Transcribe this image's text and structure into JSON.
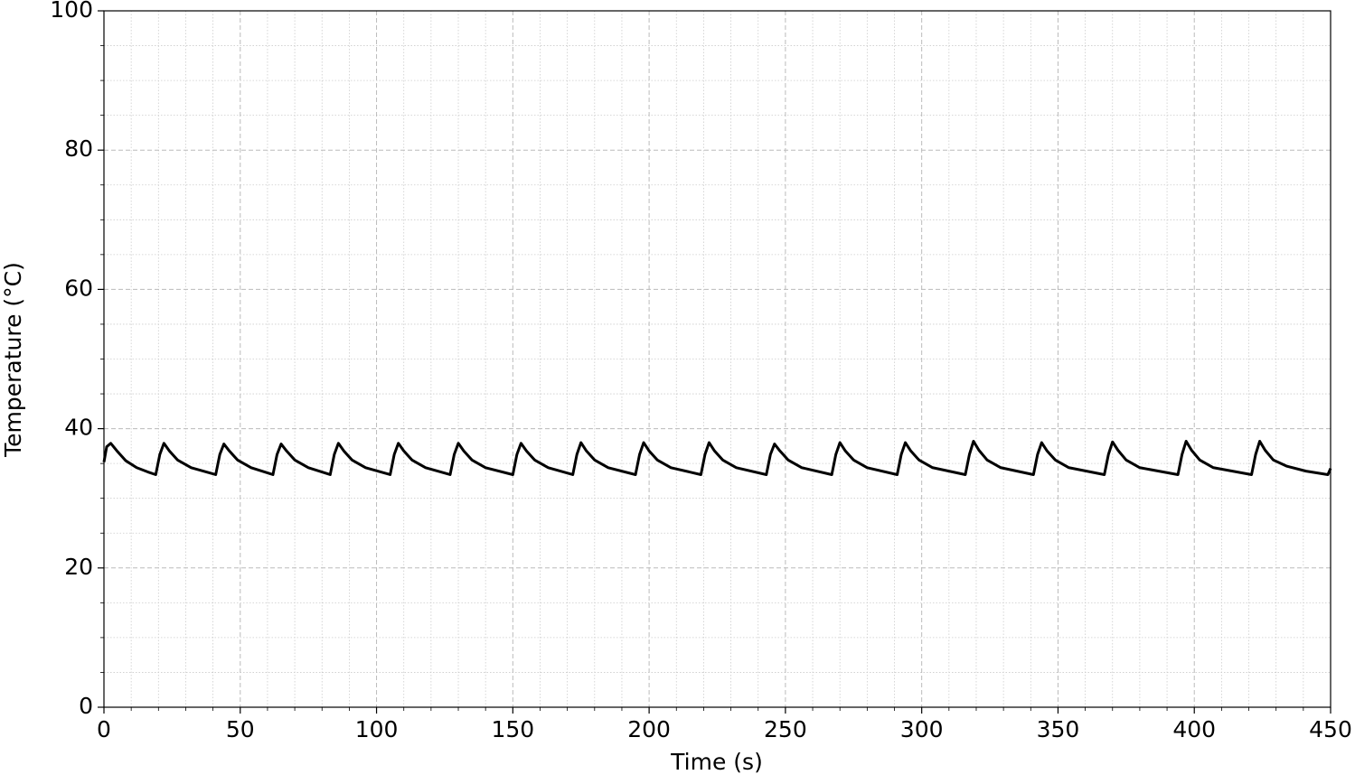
{
  "chart_data": {
    "type": "line",
    "xlabel": "Time (s)",
    "ylabel": "Temperature (°C)",
    "x": [
      0,
      1,
      2.5,
      5,
      8,
      12,
      16,
      19,
      20.5,
      22,
      24,
      27,
      32,
      41,
      42.5,
      44,
      46,
      49,
      54,
      62,
      63.5,
      65,
      67,
      70,
      75,
      83,
      84.5,
      86,
      88,
      91,
      96,
      105,
      106.5,
      108,
      110,
      113,
      118,
      127,
      128.5,
      130,
      132,
      135,
      140,
      150,
      151.5,
      153,
      155,
      158,
      163,
      172,
      173.5,
      175,
      177,
      180,
      185,
      195,
      196.5,
      198,
      200,
      203,
      208,
      219,
      220.5,
      222,
      224,
      227,
      232,
      243,
      244.5,
      246,
      248,
      251,
      256,
      267,
      268.5,
      270,
      272,
      275,
      280,
      291,
      292.5,
      294,
      296,
      299,
      304,
      316,
      317.5,
      319,
      321,
      324,
      329,
      341,
      342.5,
      344,
      346,
      349,
      354,
      367,
      368.5,
      370,
      372,
      375,
      380,
      394,
      395.5,
      397,
      399,
      402,
      407,
      421,
      422.5,
      424,
      426,
      429,
      434,
      441,
      449,
      450
    ],
    "series": [
      {
        "color": "#000000",
        "values": [
          35.2,
          37.4,
          37.9,
          36.7,
          35.4,
          34.4,
          33.8,
          33.4,
          36.3,
          37.9,
          36.8,
          35.5,
          34.4,
          33.4,
          36.3,
          37.8,
          36.8,
          35.5,
          34.4,
          33.4,
          36.3,
          37.8,
          36.8,
          35.5,
          34.4,
          33.4,
          36.3,
          37.9,
          36.8,
          35.5,
          34.4,
          33.4,
          36.3,
          37.9,
          36.8,
          35.5,
          34.4,
          33.4,
          36.3,
          37.9,
          36.8,
          35.5,
          34.4,
          33.4,
          36.3,
          37.9,
          36.8,
          35.5,
          34.4,
          33.4,
          36.3,
          38.0,
          36.8,
          35.5,
          34.4,
          33.4,
          36.3,
          38.0,
          36.8,
          35.5,
          34.4,
          33.4,
          36.3,
          38.0,
          36.8,
          35.5,
          34.4,
          33.4,
          36.3,
          37.8,
          36.8,
          35.5,
          34.4,
          33.4,
          36.3,
          38.0,
          36.8,
          35.5,
          34.4,
          33.4,
          36.3,
          38.0,
          36.8,
          35.5,
          34.4,
          33.4,
          36.3,
          38.2,
          36.9,
          35.5,
          34.4,
          33.4,
          36.3,
          38.0,
          36.8,
          35.5,
          34.4,
          33.4,
          36.3,
          38.1,
          36.9,
          35.5,
          34.4,
          33.4,
          36.3,
          38.2,
          36.9,
          35.5,
          34.4,
          33.4,
          36.3,
          38.2,
          36.9,
          35.5,
          34.6,
          33.9,
          33.4,
          34.3
        ]
      }
    ],
    "xlim": [
      0,
      450
    ],
    "xticks": [
      0,
      50,
      100,
      150,
      200,
      250,
      300,
      350,
      400,
      450
    ],
    "ylim": [
      0,
      100
    ],
    "yticks": [
      0,
      20,
      40,
      60,
      80,
      100
    ],
    "grid": true
  }
}
